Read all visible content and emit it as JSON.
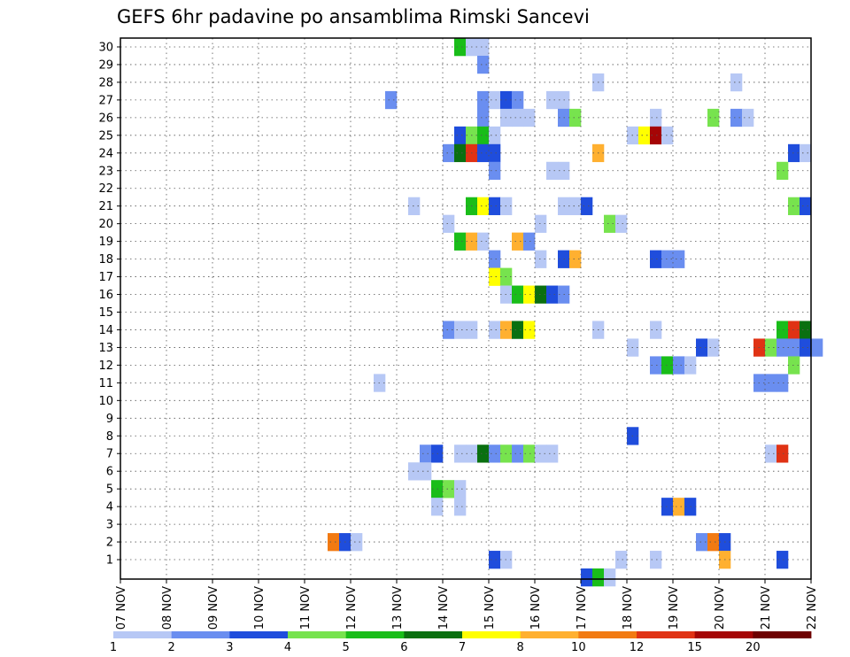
{
  "chart_data": {
    "type": "heatmap",
    "title": "GEFS 6hr padavine po ansamblima Rimski Sancevi",
    "xlabel": "",
    "ylabel": "",
    "x_tick_labels": [
      "07 NOV",
      "08 NOV",
      "09 NOV",
      "10 NOV",
      "11 NOV",
      "12 NOV",
      "13 NOV",
      "14 NOV",
      "15 NOV",
      "16 NOV",
      "17 NOV",
      "18 NOV",
      "19 NOV",
      "20 NOV",
      "21 NOV",
      "22 NOV"
    ],
    "y_tick_labels": [
      "1",
      "2",
      "3",
      "4",
      "5",
      "6",
      "7",
      "8",
      "9",
      "10",
      "11",
      "12",
      "13",
      "14",
      "15",
      "16",
      "17",
      "18",
      "19",
      "20",
      "21",
      "22",
      "23",
      "24",
      "25",
      "26",
      "27",
      "28",
      "29",
      "30"
    ],
    "x_step_hours": 6,
    "y_range": [
      1,
      30
    ],
    "grid": true,
    "colorbar": {
      "labels": [
        "1",
        "2",
        "3",
        "4",
        "5",
        "6",
        "7",
        "8",
        "10",
        "12",
        "15",
        "20"
      ],
      "colors": [
        "#b7c8f5",
        "#6a8ef0",
        "#1f4ddc",
        "#77e34e",
        "#19bd19",
        "#0a7010",
        "#ffff00",
        "#ffb030",
        "#f27a12",
        "#e03214",
        "#a50505",
        "#6e0000"
      ]
    },
    "cells_note_format": "[day_offset_from_07NOV_in_6h_steps, member, bin_index]",
    "cells": [
      [
        29,
        30,
        4
      ],
      [
        30,
        30,
        0
      ],
      [
        31,
        30,
        0
      ],
      [
        31,
        29,
        1
      ],
      [
        41,
        28,
        0
      ],
      [
        53,
        28,
        0
      ],
      [
        23,
        27,
        1
      ],
      [
        31,
        27,
        1
      ],
      [
        32,
        27,
        0
      ],
      [
        33,
        27,
        2
      ],
      [
        34,
        27,
        1
      ],
      [
        37,
        27,
        0
      ],
      [
        38,
        27,
        0
      ],
      [
        31,
        26,
        1
      ],
      [
        33,
        26,
        0
      ],
      [
        34,
        26,
        0
      ],
      [
        35,
        26,
        0
      ],
      [
        38,
        26,
        1
      ],
      [
        39,
        26,
        3
      ],
      [
        46,
        26,
        0
      ],
      [
        51,
        26,
        3
      ],
      [
        53,
        26,
        1
      ],
      [
        54,
        26,
        0
      ],
      [
        29,
        25,
        2
      ],
      [
        30,
        25,
        3
      ],
      [
        31,
        25,
        4
      ],
      [
        32,
        25,
        0
      ],
      [
        44,
        25,
        0
      ],
      [
        45,
        25,
        6
      ],
      [
        46,
        25,
        10
      ],
      [
        47,
        25,
        0
      ],
      [
        28,
        24,
        1
      ],
      [
        29,
        24,
        5
      ],
      [
        30,
        24,
        9
      ],
      [
        31,
        24,
        2
      ],
      [
        32,
        24,
        2
      ],
      [
        41,
        24,
        7
      ],
      [
        58,
        24,
        2
      ],
      [
        59,
        24,
        0
      ],
      [
        32,
        23,
        1
      ],
      [
        37,
        23,
        0
      ],
      [
        38,
        23,
        0
      ],
      [
        57,
        23,
        3
      ],
      [
        25,
        21,
        0
      ],
      [
        30,
        21,
        4
      ],
      [
        31,
        21,
        6
      ],
      [
        32,
        21,
        2
      ],
      [
        33,
        21,
        0
      ],
      [
        38,
        21,
        0
      ],
      [
        39,
        21,
        0
      ],
      [
        40,
        21,
        2
      ],
      [
        58,
        21,
        3
      ],
      [
        59,
        21,
        2
      ],
      [
        28,
        20,
        0
      ],
      [
        36,
        20,
        0
      ],
      [
        42,
        20,
        3
      ],
      [
        43,
        20,
        0
      ],
      [
        29,
        19,
        4
      ],
      [
        30,
        19,
        7
      ],
      [
        31,
        19,
        0
      ],
      [
        34,
        19,
        7
      ],
      [
        35,
        19,
        1
      ],
      [
        32,
        18,
        1
      ],
      [
        36,
        18,
        0
      ],
      [
        38,
        18,
        2
      ],
      [
        39,
        18,
        7
      ],
      [
        46,
        18,
        2
      ],
      [
        47,
        18,
        1
      ],
      [
        48,
        18,
        1
      ],
      [
        32,
        17,
        6
      ],
      [
        33,
        17,
        3
      ],
      [
        33,
        16,
        0
      ],
      [
        34,
        16,
        4
      ],
      [
        35,
        16,
        6
      ],
      [
        36,
        16,
        5
      ],
      [
        37,
        16,
        2
      ],
      [
        38,
        16,
        1
      ],
      [
        28,
        14,
        1
      ],
      [
        29,
        14,
        0
      ],
      [
        30,
        14,
        0
      ],
      [
        32,
        14,
        0
      ],
      [
        33,
        14,
        7
      ],
      [
        34,
        14,
        5
      ],
      [
        35,
        14,
        6
      ],
      [
        41,
        14,
        0
      ],
      [
        46,
        14,
        0
      ],
      [
        57,
        14,
        4
      ],
      [
        58,
        14,
        9
      ],
      [
        59,
        14,
        5
      ],
      [
        44,
        13,
        0
      ],
      [
        50,
        13,
        2
      ],
      [
        51,
        13,
        0
      ],
      [
        55,
        13,
        9
      ],
      [
        56,
        13,
        3
      ],
      [
        57,
        13,
        1
      ],
      [
        58,
        13,
        1
      ],
      [
        59,
        13,
        2
      ],
      [
        60,
        13,
        1
      ],
      [
        46,
        12,
        1
      ],
      [
        47,
        12,
        4
      ],
      [
        48,
        12,
        1
      ],
      [
        49,
        12,
        0
      ],
      [
        58,
        12,
        3
      ],
      [
        22,
        11,
        0
      ],
      [
        55,
        11,
        1
      ],
      [
        56,
        11,
        1
      ],
      [
        57,
        11,
        1
      ],
      [
        44,
        8,
        2
      ],
      [
        26,
        7,
        1
      ],
      [
        27,
        7,
        2
      ],
      [
        29,
        7,
        0
      ],
      [
        30,
        7,
        0
      ],
      [
        31,
        7,
        5
      ],
      [
        32,
        7,
        1
      ],
      [
        33,
        7,
        3
      ],
      [
        34,
        7,
        1
      ],
      [
        35,
        7,
        3
      ],
      [
        36,
        7,
        0
      ],
      [
        37,
        7,
        0
      ],
      [
        56,
        7,
        0
      ],
      [
        57,
        7,
        9
      ],
      [
        25,
        6,
        0
      ],
      [
        26,
        6,
        0
      ],
      [
        27,
        5,
        4
      ],
      [
        28,
        5,
        3
      ],
      [
        29,
        5,
        0
      ],
      [
        27,
        4,
        0
      ],
      [
        29,
        4,
        0
      ],
      [
        47,
        4,
        2
      ],
      [
        48,
        4,
        7
      ],
      [
        49,
        4,
        2
      ],
      [
        18,
        2,
        8
      ],
      [
        19,
        2,
        2
      ],
      [
        20,
        2,
        0
      ],
      [
        50,
        2,
        1
      ],
      [
        51,
        2,
        8
      ],
      [
        52,
        2,
        2
      ],
      [
        32,
        1,
        2
      ],
      [
        33,
        1,
        0
      ],
      [
        43,
        1,
        0
      ],
      [
        46,
        1,
        0
      ],
      [
        52,
        1,
        7
      ],
      [
        57,
        1,
        2
      ],
      [
        40,
        0,
        2
      ],
      [
        41,
        0,
        4
      ],
      [
        42,
        0,
        0
      ]
    ]
  }
}
